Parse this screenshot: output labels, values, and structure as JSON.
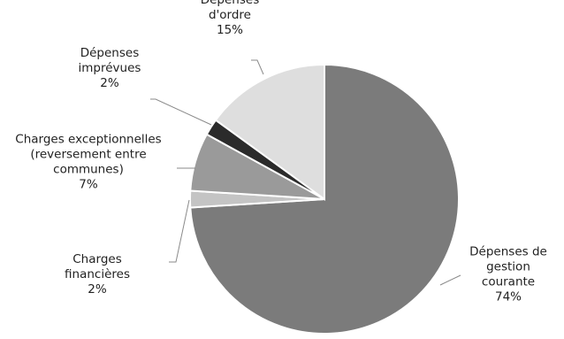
{
  "chart_data": {
    "type": "pie",
    "title": "",
    "slices": [
      {
        "label": "Dépenses de gestion courante",
        "label_lines": [
          "Dépenses de",
          "gestion",
          "courante"
        ],
        "value": 74,
        "value_label": "74%",
        "color": "#7b7b7b"
      },
      {
        "label": "Charges financières",
        "label_lines": [
          "Charges",
          "financières"
        ],
        "value": 2,
        "value_label": "2%",
        "color": "#c4c4c4"
      },
      {
        "label": "Charges exceptionnelles (reversement entre communes)",
        "label_lines": [
          "Charges exceptionnelles",
          "(reversement entre",
          "communes)"
        ],
        "value": 7,
        "value_label": "7%",
        "color": "#9a9a9a"
      },
      {
        "label": "Dépenses imprévues",
        "label_lines": [
          "Dépenses",
          "imprévues"
        ],
        "value": 2,
        "value_label": "2%",
        "color": "#2b2b2b"
      },
      {
        "label": "Dépenses d'ordre",
        "label_lines": [
          "Dépenses",
          "d'ordre"
        ],
        "value": 15,
        "value_label": "15%",
        "color": "#dedede"
      }
    ],
    "start_angle_deg": 0,
    "direction": "clockwise",
    "legend": "none",
    "labels": "outside with leader lines"
  }
}
